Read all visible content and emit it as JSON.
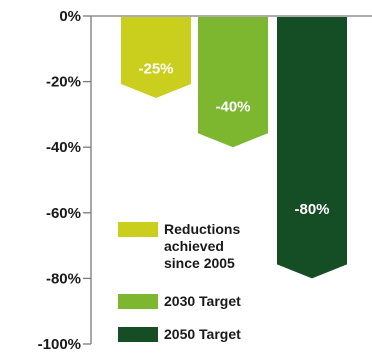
{
  "chart_data": {
    "type": "bar",
    "title": "",
    "xlabel": "",
    "ylabel": "",
    "ylim": [
      -100,
      0
    ],
    "yticks": [
      0,
      -20,
      -40,
      -60,
      -80,
      -100
    ],
    "ytick_labels": [
      "0%",
      "-20%",
      "-40%",
      "-60%",
      "-80%",
      "-100%"
    ],
    "categories": [
      "Reductions achieved since 2005",
      "2030 Target",
      "2050 Target"
    ],
    "values": [
      -25,
      -40,
      -80
    ],
    "data_labels": [
      "-25%",
      "-40%",
      "-80%"
    ],
    "colors": [
      "#c9cf1c",
      "#7cb72f",
      "#154d24"
    ],
    "legend": {
      "placement": "bottom-center",
      "entries": [
        {
          "lines": [
            "Reductions",
            "achieved",
            "since 2005"
          ],
          "color": "#c9cf1c"
        },
        {
          "lines": [
            "2030 Target"
          ],
          "color": "#7cb72f"
        },
        {
          "lines": [
            "2050 Target"
          ],
          "color": "#154d24"
        }
      ]
    }
  }
}
